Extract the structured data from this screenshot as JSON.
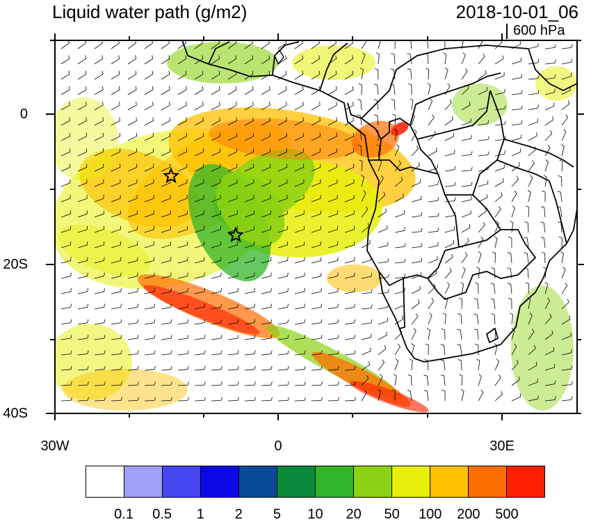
{
  "title": "Liquid water path (g/m2)",
  "datetime": "2018-10-01_06",
  "level": "600 hPa",
  "axes": {
    "y_ticks": [
      "0",
      "20S",
      "40S"
    ],
    "x_ticks": [
      "30W",
      "0",
      "30E"
    ]
  },
  "colorbar": {
    "labels": [
      "0.1",
      "0.5",
      "1",
      "2",
      "5",
      "10",
      "20",
      "50",
      "100",
      "200",
      "500"
    ],
    "colors": [
      "#ffffff",
      "#a0a0f5",
      "#4646f0",
      "#0a0ae6",
      "#0a4a9a",
      "#0a8a3a",
      "#32b428",
      "#8cd214",
      "#e6f00a",
      "#ffc000",
      "#ff6e00",
      "#ff1e00"
    ]
  },
  "markers": [
    "star",
    "star"
  ]
}
